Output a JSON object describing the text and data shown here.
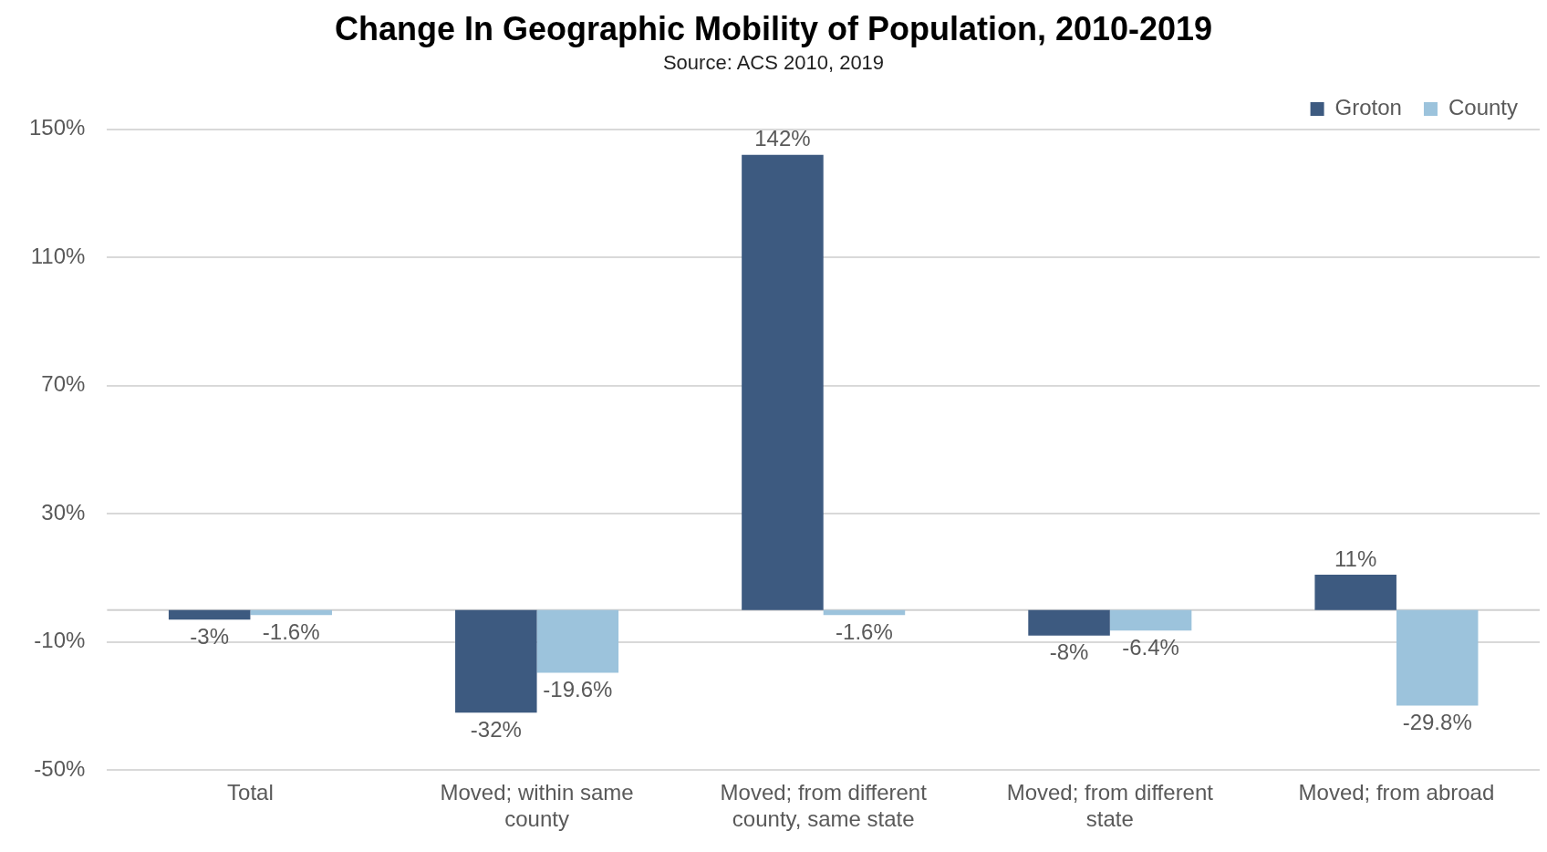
{
  "chart_data": {
    "type": "bar",
    "title": "Change In Geographic Mobility of Population, 2010-2019",
    "subtitle": "Source: ACS 2010, 2019",
    "categories": [
      "Total",
      "Moved; within same county",
      "Moved; from different county, same state",
      "Moved; from different state",
      "Moved; from abroad"
    ],
    "series": [
      {
        "name": "Groton",
        "color": "#3d5a80",
        "values": [
          -3,
          -32,
          142,
          -8,
          11
        ],
        "value_labels": [
          "-3%",
          "-32%",
          "142%",
          "-8%",
          "11%"
        ]
      },
      {
        "name": "County",
        "color": "#9cc3dc",
        "values": [
          -1.6,
          -19.6,
          -1.6,
          -6.4,
          -29.8
        ],
        "value_labels": [
          "-1.6%",
          "-19.6%",
          "-1.6%",
          "-6.4%",
          "-29.8%"
        ]
      }
    ],
    "ylim": [
      -50,
      150
    ],
    "yticks": [
      {
        "value": -50,
        "label": "-50%"
      },
      {
        "value": -10,
        "label": "-10%"
      },
      {
        "value": 30,
        "label": "30%"
      },
      {
        "value": 70,
        "label": "70%"
      },
      {
        "value": 110,
        "label": "110%"
      },
      {
        "value": 150,
        "label": "150%"
      }
    ],
    "grid": "y",
    "legend": "top right"
  }
}
